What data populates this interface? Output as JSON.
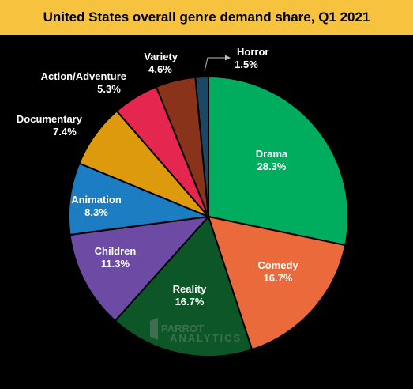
{
  "chart_data": {
    "type": "pie",
    "title": "United States overall genre demand share, Q1 2021",
    "slices": [
      {
        "label": "Drama",
        "value": 28.3,
        "value_label": "28.3%",
        "color": "#00ad5f"
      },
      {
        "label": "Comedy",
        "value": 16.7,
        "value_label": "16.7%",
        "color": "#ea6a3c"
      },
      {
        "label": "Reality",
        "value": 16.7,
        "value_label": "16.7%",
        "color": "#0d5628"
      },
      {
        "label": "Children",
        "value": 11.3,
        "value_label": "11.3%",
        "color": "#6d4aa3"
      },
      {
        "label": "Animation",
        "value": 8.3,
        "value_label": "8.3%",
        "color": "#1c7dc3"
      },
      {
        "label": "Documentary",
        "value": 7.4,
        "value_label": "7.4%",
        "color": "#dd9a0c"
      },
      {
        "label": "Action/Adventure",
        "value": 5.3,
        "value_label": "5.3%",
        "color": "#e5274f"
      },
      {
        "label": "Variety",
        "value": 4.6,
        "value_label": "4.6%",
        "color": "#88331a"
      },
      {
        "label": "Horror",
        "value": 1.5,
        "value_label": "1.5%",
        "color": "#1a4763"
      }
    ],
    "start_angle": "12 o'clock",
    "direction": "clockwise"
  },
  "watermark": {
    "brand": "PARROT",
    "sub": "ANALYTICS"
  }
}
